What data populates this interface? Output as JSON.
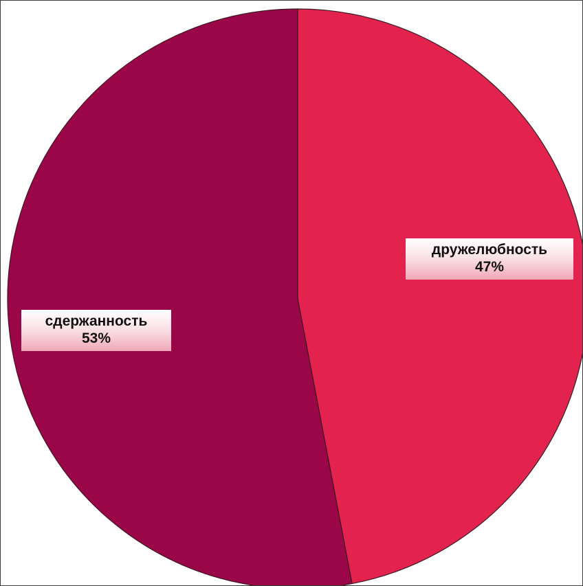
{
  "chart_data": {
    "type": "pie",
    "title": "",
    "start_angle_deg": 0,
    "direction": "clockwise",
    "legend": "none",
    "slices": [
      {
        "name": "дружелюбность",
        "value": 47,
        "value_label": "47%",
        "color": "#e3234e"
      },
      {
        "name": "сдержанность",
        "value": 53,
        "value_label": "53%",
        "color": "#9b0649"
      }
    ],
    "outline_color": "#3a1a22"
  }
}
